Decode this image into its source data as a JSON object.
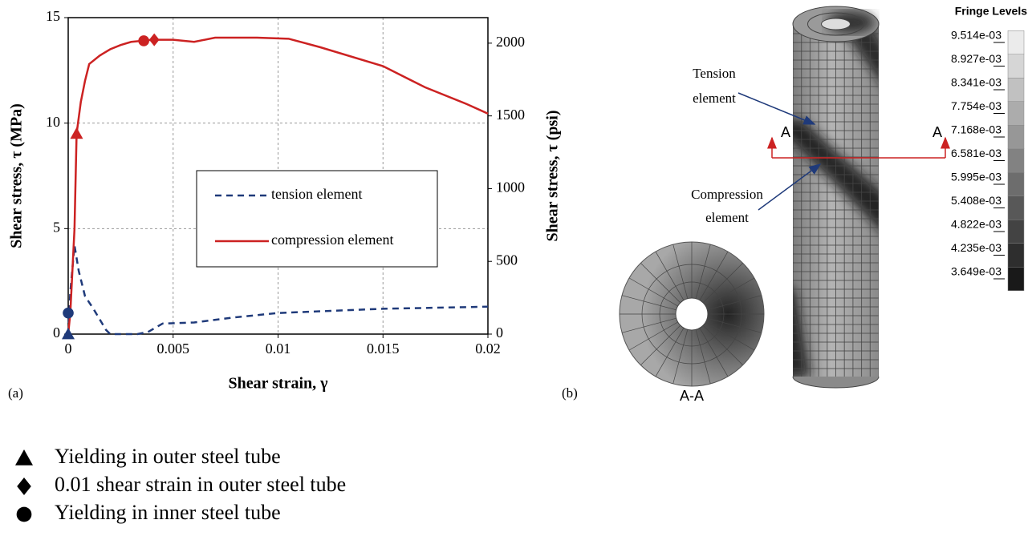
{
  "chart_data": {
    "type": "line",
    "panel_label": "(a)",
    "xlabel": "Shear strain, γ",
    "ylabel": "Shear stress, τ (MPa)",
    "y2label": "Shear stress, τ (psi)",
    "xlim": [
      0,
      0.02
    ],
    "xticks": [
      0,
      0.005,
      0.01,
      0.015,
      0.02
    ],
    "ylim": [
      0,
      15
    ],
    "yticks": [
      0,
      5,
      10,
      15
    ],
    "y2lim": [
      0,
      2175.6
    ],
    "y2ticks": [
      0,
      500,
      1000,
      1500,
      2000
    ],
    "grid": true,
    "series": [
      {
        "name": "tension element",
        "color": "#1f3a7a",
        "dash": true,
        "x": [
          0,
          0.0001,
          0.0003,
          0.0005,
          0.0008,
          0.0012,
          0.0018,
          0.002,
          0.0033,
          0.0038,
          0.0045,
          0.006,
          0.008,
          0.01,
          0.0125,
          0.015,
          0.02
        ],
        "values": [
          0,
          2,
          4.2,
          3,
          1.8,
          1.2,
          0.2,
          0,
          0,
          0.1,
          0.5,
          0.55,
          0.8,
          1.0,
          1.1,
          1.2,
          1.3
        ]
      },
      {
        "name": "compression element",
        "color": "#cc2222",
        "dash": false,
        "x": [
          0,
          0.0001,
          0.0003,
          0.0004,
          0.0006,
          0.0008,
          0.001,
          0.0015,
          0.002,
          0.0025,
          0.003,
          0.0035,
          0.004,
          0.005,
          0.006,
          0.007,
          0.008,
          0.009,
          0.0105,
          0.012,
          0.015,
          0.017,
          0.019,
          0.02
        ],
        "values": [
          0,
          1,
          5,
          9.5,
          11,
          12,
          12.8,
          13.2,
          13.5,
          13.7,
          13.85,
          13.9,
          13.95,
          13.95,
          13.85,
          14.05,
          14.05,
          14.05,
          14.0,
          13.6,
          12.7,
          11.7,
          10.9,
          10.45
        ]
      }
    ],
    "markers": [
      {
        "name": "Yielding in outer steel tube",
        "shape": "triangle",
        "x": [
          0,
          0.0004
        ],
        "values": [
          0,
          9.5
        ],
        "colors": [
          "#1f3a7a",
          "#cc2222"
        ]
      },
      {
        "name": "0.01 shear strain in outer steel tube",
        "shape": "diamond",
        "x": [
          0.0041
        ],
        "values": [
          13.95
        ],
        "colors": [
          "#cc2222"
        ]
      },
      {
        "name": "Yielding in inner steel tube",
        "shape": "circle",
        "x": [
          0,
          0.0036
        ],
        "values": [
          1,
          13.9
        ],
        "colors": [
          "#1f3a7a",
          "#cc2222"
        ]
      }
    ]
  },
  "panel_b": {
    "label": "(b)",
    "tension_callout": [
      "Tension",
      "element"
    ],
    "compression_callout": [
      "Compression",
      "element"
    ],
    "section_marks": [
      "A",
      "A"
    ],
    "section_label": "A-A",
    "fringe": {
      "title": "Fringe Levels",
      "levels": [
        "9.514e-03",
        "8.927e-03",
        "8.341e-03",
        "7.754e-03",
        "7.168e-03",
        "6.581e-03",
        "5.995e-03",
        "5.408e-03",
        "4.822e-03",
        "4.235e-03",
        "3.649e-03"
      ]
    }
  }
}
